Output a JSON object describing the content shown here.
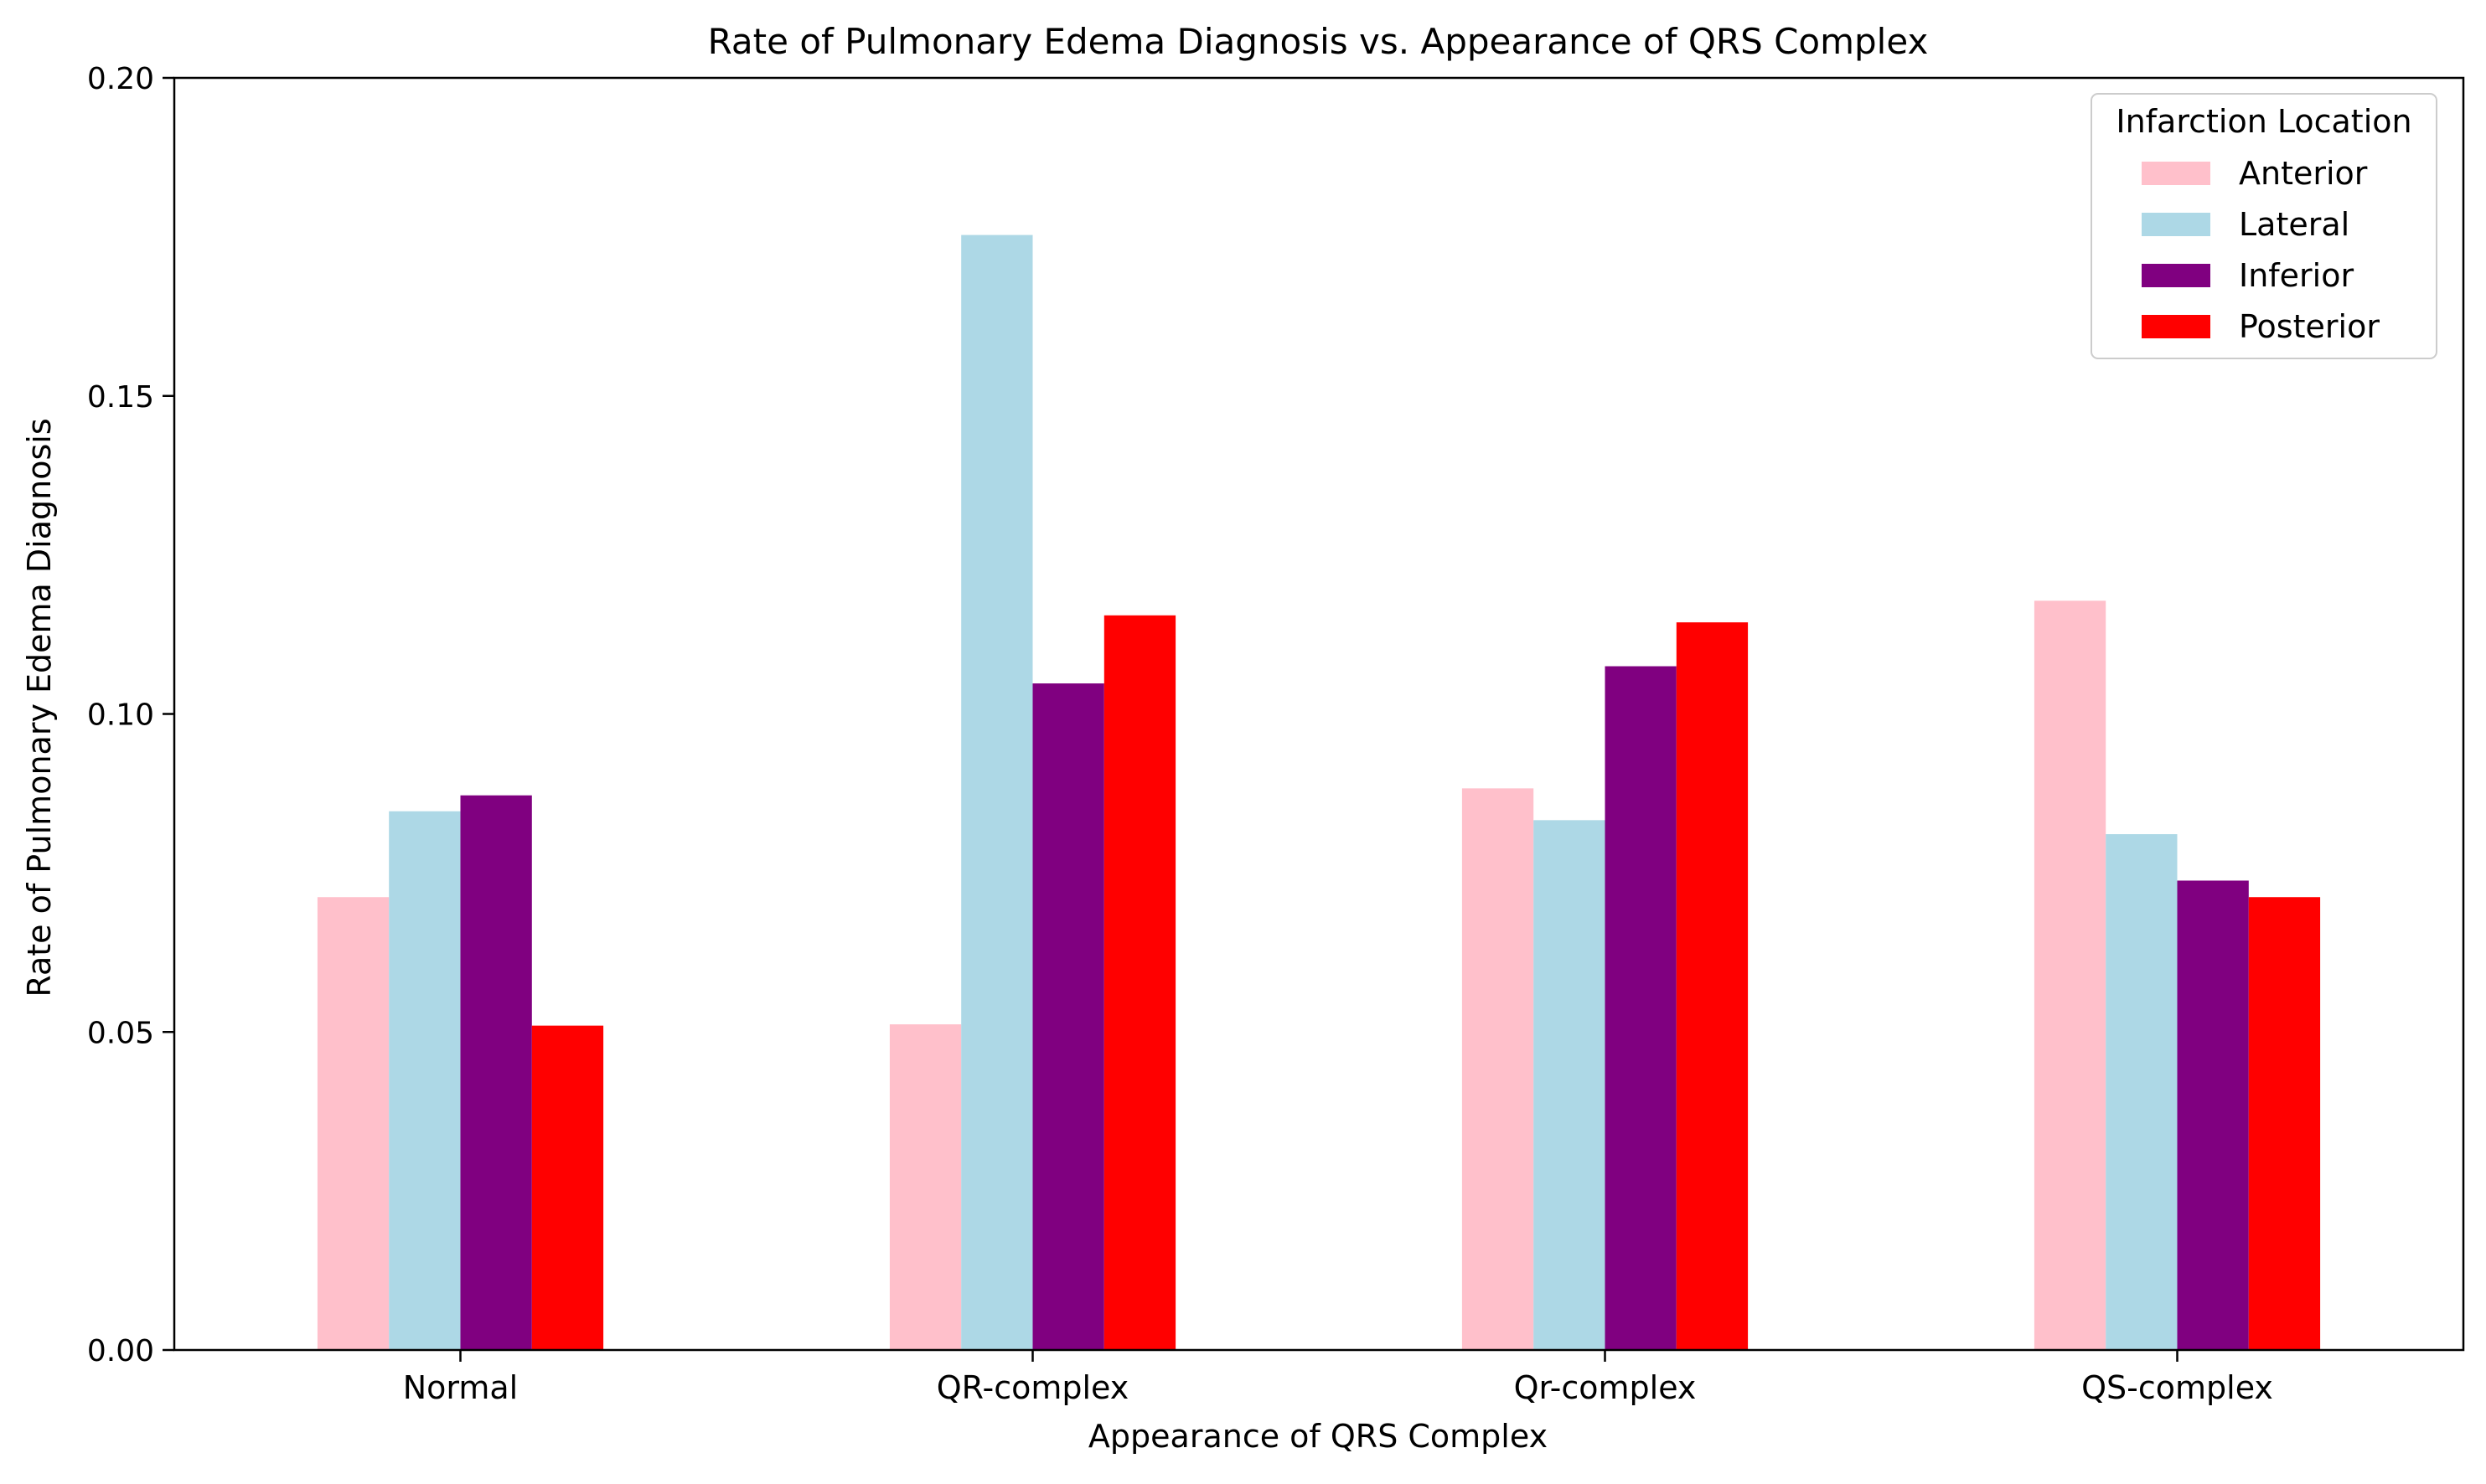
{
  "chart_data": {
    "type": "bar",
    "title": "Rate of Pulmonary Edema Diagnosis vs. Appearance of QRS Complex",
    "xlabel": "Appearance of QRS Complex",
    "ylabel": "Rate of Pulmonary Edema Diagnosis",
    "categories": [
      "Normal",
      "QR-complex",
      "Qr-complex",
      "QS-complex"
    ],
    "ylim": [
      0,
      0.2
    ],
    "yticks": [
      "0.00",
      "0.05",
      "0.10",
      "0.15",
      "0.20"
    ],
    "grid": false,
    "legend": {
      "title": "Infarction Location",
      "placement": "top-right"
    },
    "series": [
      {
        "name": "Anterior",
        "color": "#ffc0cb",
        "values": [
          0.0712,
          0.0512,
          0.0883,
          0.1178
        ]
      },
      {
        "name": "Lateral",
        "color": "#add8e6",
        "values": [
          0.0847,
          0.1753,
          0.0833,
          0.0811
        ]
      },
      {
        "name": "Inferior",
        "color": "#800080",
        "values": [
          0.0872,
          0.1048,
          0.1075,
          0.0738
        ]
      },
      {
        "name": "Posterior",
        "color": "#ff0000",
        "values": [
          0.051,
          0.1155,
          0.1144,
          0.0712
        ]
      }
    ]
  }
}
